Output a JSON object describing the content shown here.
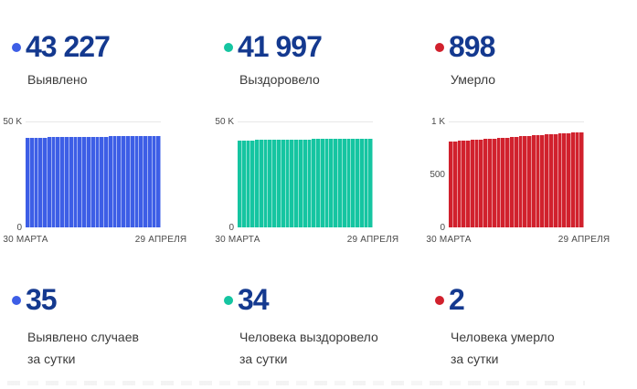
{
  "colors": {
    "number_text": "#14398f",
    "label_text": "#3b3b3b",
    "axis_text": "#4a4a4a",
    "gridline": "#e7e7e7",
    "confirmed": "#3d5ee6",
    "recovered": "#15c5a1",
    "deaths": "#d1212d"
  },
  "top_stats": [
    {
      "value": "43 227",
      "label": "Выявлено",
      "color_key": "confirmed"
    },
    {
      "value": "41 997",
      "label": "Выздоровело",
      "color_key": "recovered"
    },
    {
      "value": "898",
      "label": "Умерло",
      "color_key": "deaths"
    }
  ],
  "daily_stats": [
    {
      "value": "35",
      "label_line1": "Выявлено случаев",
      "label_line2": "за сутки",
      "color_key": "confirmed"
    },
    {
      "value": "34",
      "label_line1": "Человека выздоровело",
      "label_line2": "за сутки",
      "color_key": "recovered"
    },
    {
      "value": "2",
      "label_line1": "Человека умерло",
      "label_line2": "за сутки",
      "color_key": "deaths"
    }
  ],
  "chart_data": [
    {
      "type": "bar",
      "title": "Выявлено",
      "x_start_label": "30 МАРТА",
      "x_end_label": "29 АПРЕЛЯ",
      "ylim": [
        0,
        50000
      ],
      "y_ticks": [
        {
          "label": "50 K",
          "value": 50000
        },
        {
          "label": "0",
          "value": 0
        }
      ],
      "color": "#3d5ee6",
      "grid": "horizontal",
      "legend": "none",
      "values": [
        42327,
        42359,
        42390,
        42421,
        42450,
        42480,
        42511,
        42540,
        42571,
        42602,
        42633,
        42663,
        42694,
        42724,
        42755,
        42786,
        42816,
        42847,
        42877,
        42908,
        42938,
        42969,
        43000,
        43030,
        43060,
        43090,
        43120,
        43145,
        43170,
        43192,
        43227
      ]
    },
    {
      "type": "bar",
      "title": "Выздоровело",
      "x_start_label": "30 МАРТА",
      "x_end_label": "29 АПРЕЛЯ",
      "ylim": [
        0,
        50000
      ],
      "y_ticks": [
        {
          "label": "50 K",
          "value": 50000
        },
        {
          "label": "0",
          "value": 0
        }
      ],
      "color": "#15c5a1",
      "grid": "horizontal",
      "legend": "none",
      "values": [
        41050,
        41085,
        41120,
        41155,
        41190,
        41225,
        41260,
        41295,
        41330,
        41365,
        41400,
        41435,
        41470,
        41500,
        41530,
        41560,
        41590,
        41620,
        41650,
        41680,
        41710,
        41740,
        41770,
        41800,
        41830,
        41860,
        41890,
        41915,
        41940,
        41963,
        41997
      ]
    },
    {
      "type": "bar",
      "title": "Умерло",
      "x_start_label": "30 МАРТА",
      "x_end_label": "29 АПРЕЛЯ",
      "ylim": [
        0,
        1000
      ],
      "y_ticks": [
        {
          "label": "1 K",
          "value": 1000
        },
        {
          "label": "500",
          "value": 500
        },
        {
          "label": "0",
          "value": 0
        }
      ],
      "color": "#d1212d",
      "grid": "horizontal",
      "legend": "none",
      "values": [
        810,
        813,
        816,
        819,
        822,
        825,
        828,
        831,
        834,
        837,
        840,
        843,
        846,
        849,
        852,
        855,
        858,
        861,
        864,
        867,
        870,
        873,
        876,
        879,
        882,
        885,
        888,
        891,
        894,
        896,
        898
      ]
    }
  ]
}
